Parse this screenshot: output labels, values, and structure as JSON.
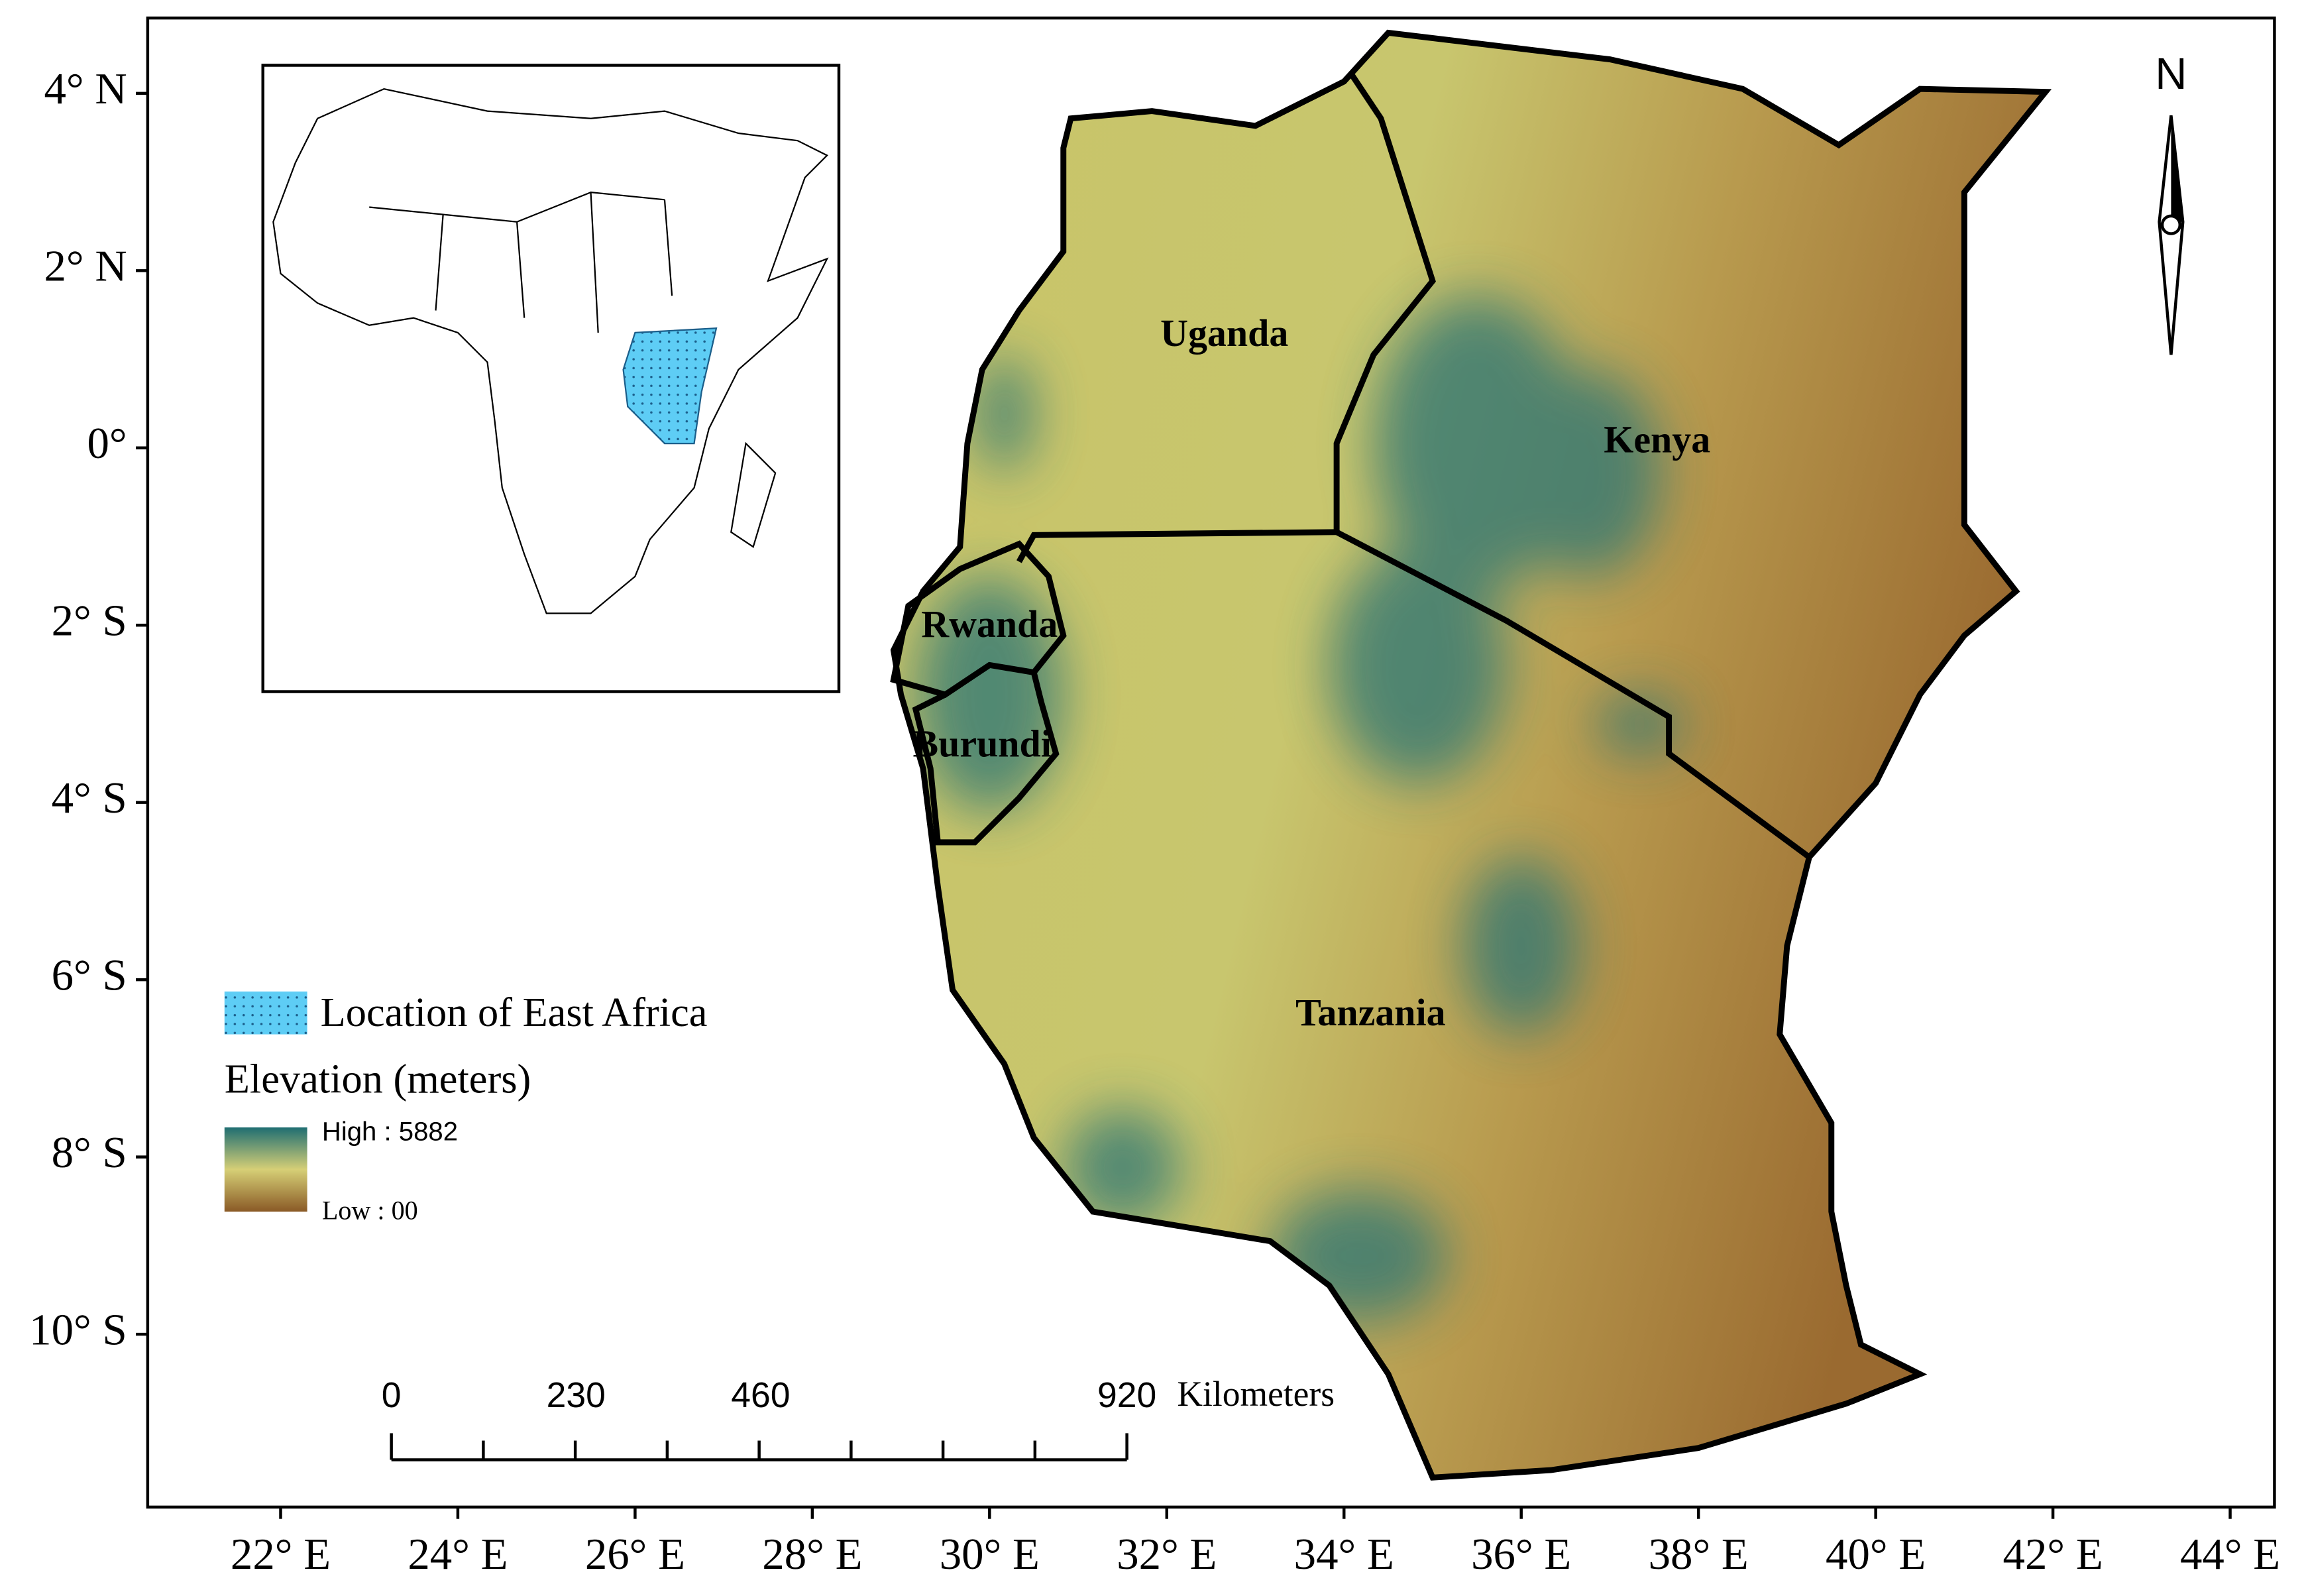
{
  "map": {
    "lat_labels": [
      "4° N",
      "2° N",
      "0°",
      "2° S",
      "4° S",
      "6° S",
      "8° S",
      "10° S"
    ],
    "lon_labels": [
      "22° E",
      "24° E",
      "26° E",
      "28° E",
      "30° E",
      "32° E",
      "34° E",
      "36° E",
      "38° E",
      "40° E",
      "42° E",
      "44° E"
    ],
    "countries": [
      "Uganda",
      "Kenya",
      "Rwanda",
      "Burundi",
      "Tanzania"
    ],
    "north": "N",
    "legend": {
      "location": "Location of East Africa",
      "elevation_title": "Elevation (meters)",
      "high": "High : 5882",
      "low": "Low : 00"
    },
    "scale_bar": {
      "labels": [
        "0",
        "230",
        "460",
        "920"
      ],
      "unit": "Kilometers"
    }
  }
}
